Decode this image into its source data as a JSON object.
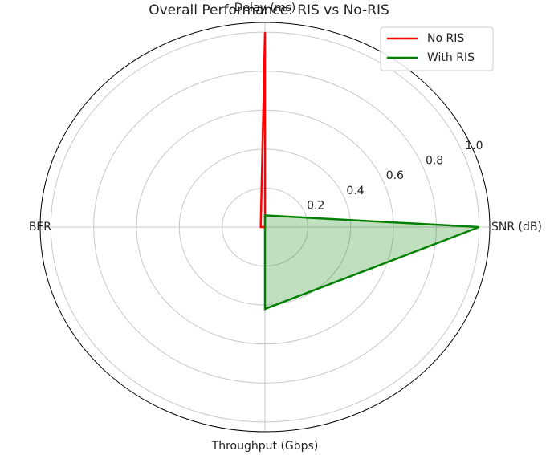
{
  "chart_data": {
    "type": "radar",
    "title": "Overall Performance: RIS vs No-RIS",
    "categories": [
      "SNR (dB)",
      "Delay (ms)",
      "BER",
      "Throughput (Gbps)"
    ],
    "series": [
      {
        "name": "No RIS",
        "color": "#ff0000",
        "values": [
          0,
          1.0,
          0.02,
          0
        ]
      },
      {
        "name": "With RIS",
        "color": "#008000",
        "values": [
          1.0,
          0.06,
          0,
          0.42
        ]
      }
    ],
    "ylim": [
      0,
      1.05
    ],
    "yticks": [
      0.2,
      0.4,
      0.6,
      0.8,
      {
        "value": 1,
        "label": "1.0"
      }
    ],
    "grid": true,
    "legend": "upper right"
  }
}
